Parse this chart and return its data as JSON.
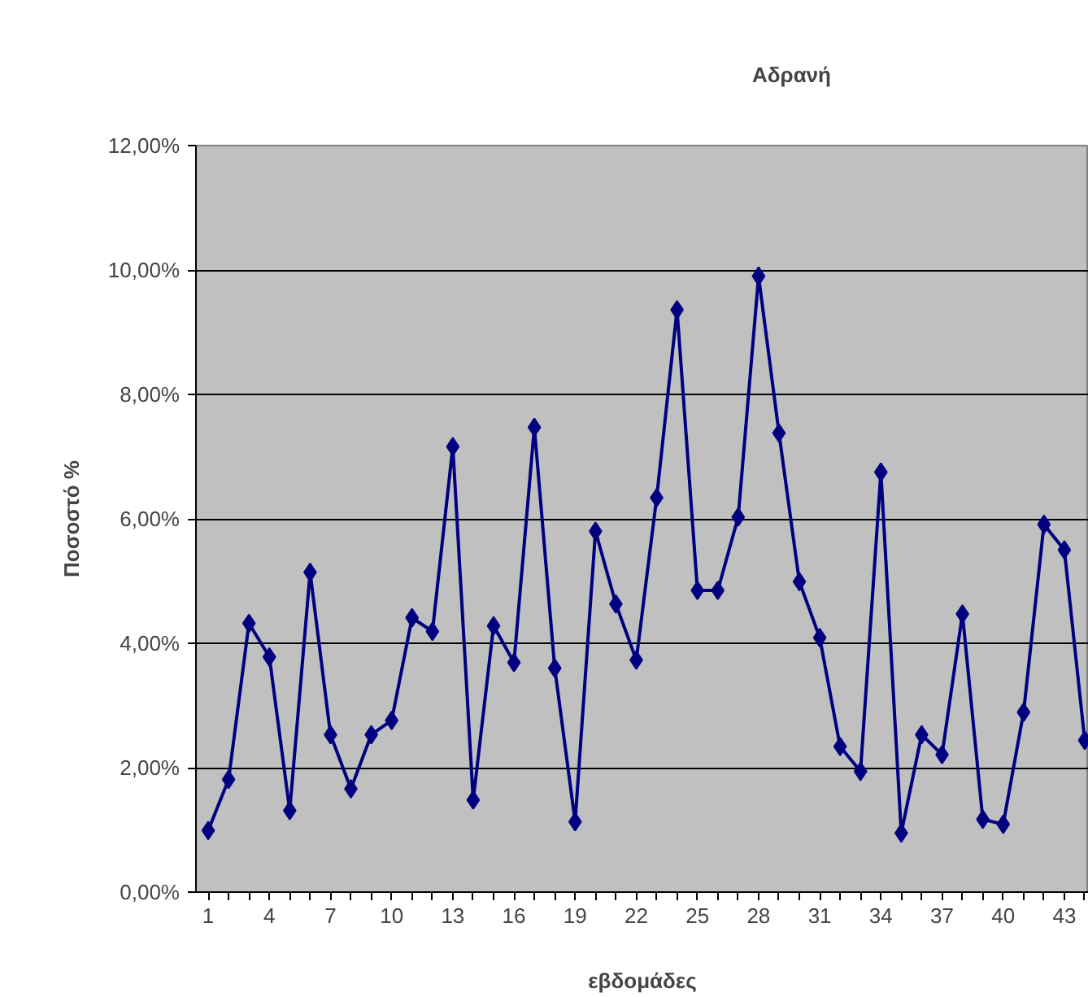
{
  "chart_data": {
    "type": "line",
    "title": "Αδρανή",
    "xlabel": "εβδομάδες",
    "ylabel": "Ποσοστό %",
    "x": [
      1,
      2,
      3,
      4,
      5,
      6,
      7,
      8,
      9,
      10,
      11,
      12,
      13,
      14,
      15,
      16,
      17,
      18,
      19,
      20,
      21,
      22,
      23,
      24,
      25,
      26,
      27,
      28,
      29,
      30,
      31,
      32,
      33,
      34,
      35,
      36,
      37,
      38,
      39,
      40,
      41,
      42,
      43,
      44
    ],
    "series": [
      {
        "color": "#000080",
        "values": [
          0.99,
          1.81,
          4.32,
          3.78,
          1.31,
          5.14,
          2.53,
          1.66,
          2.53,
          2.76,
          4.41,
          4.19,
          7.16,
          1.48,
          4.28,
          3.69,
          7.47,
          3.6,
          1.13,
          5.8,
          4.63,
          3.73,
          6.34,
          9.36,
          4.85,
          4.85,
          6.03,
          9.9,
          7.38,
          4.99,
          4.09,
          2.34,
          1.94,
          6.75,
          0.95,
          2.53,
          2.21,
          4.47,
          1.17,
          1.09,
          2.89,
          5.91,
          5.5,
          2.44
        ]
      }
    ],
    "xlim": [
      0.4,
      44.2
    ],
    "xticks": [
      1,
      {
        "value": 2,
        "label": null
      },
      {
        "value": 3,
        "label": null
      },
      4,
      {
        "value": 5,
        "label": null
      },
      {
        "value": 6,
        "label": null
      },
      7,
      {
        "value": 8,
        "label": null
      },
      {
        "value": 9,
        "label": null
      },
      10,
      {
        "value": 11,
        "label": null
      },
      {
        "value": 12,
        "label": null
      },
      13,
      {
        "value": 14,
        "label": null
      },
      {
        "value": 15,
        "label": null
      },
      16,
      {
        "value": 17,
        "label": null
      },
      {
        "value": 18,
        "label": null
      },
      19,
      {
        "value": 20,
        "label": null
      },
      {
        "value": 21,
        "label": null
      },
      22,
      {
        "value": 23,
        "label": null
      },
      {
        "value": 24,
        "label": null
      },
      25,
      {
        "value": 26,
        "label": null
      },
      {
        "value": 27,
        "label": null
      },
      28,
      {
        "value": 29,
        "label": null
      },
      {
        "value": 30,
        "label": null
      },
      31,
      {
        "value": 32,
        "label": null
      },
      {
        "value": 33,
        "label": null
      },
      34,
      {
        "value": 35,
        "label": null
      },
      {
        "value": 36,
        "label": null
      },
      37,
      {
        "value": 38,
        "label": null
      },
      {
        "value": 39,
        "label": null
      },
      40,
      {
        "value": 41,
        "label": null
      },
      {
        "value": 42,
        "label": null
      },
      43,
      {
        "value": 44,
        "label": null
      }
    ],
    "ylim": [
      0,
      12
    ],
    "yticks": [
      {
        "value": 0,
        "label": "0,00%"
      },
      {
        "value": 2,
        "label": "2,00%"
      },
      {
        "value": 4,
        "label": "4,00%"
      },
      {
        "value": 6,
        "label": "6,00%"
      },
      {
        "value": 8,
        "label": "8,00%"
      },
      {
        "value": 10,
        "label": "10,00%"
      },
      {
        "value": 12,
        "label": "12,00%"
      }
    ],
    "grid": "y",
    "marker": "diamond",
    "line_style": "solid"
  }
}
